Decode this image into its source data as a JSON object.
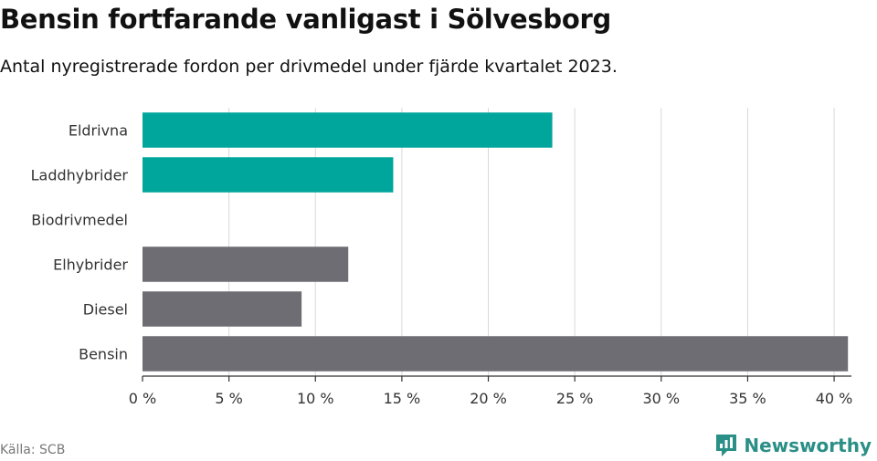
{
  "header": {
    "title": "Bensin fortfarande vanligast i Sölvesborg",
    "subtitle": "Antal nyregistrerade fordon per drivmedel under fjärde kvartalet 2023."
  },
  "footer": {
    "source": "Källa: SCB",
    "brand": "Newsworthy"
  },
  "colors": {
    "electric": "#00a59b",
    "fossil": "#6e6d73",
    "grid": "#d9d9d9",
    "axis": "#333333"
  },
  "chart_data": {
    "type": "bar",
    "orientation": "horizontal",
    "title": "Bensin fortfarande vanligast i Sölvesborg",
    "subtitle": "Antal nyregistrerade fordon per drivmedel under fjärde kvartalet 2023.",
    "xlabel": "",
    "ylabel": "",
    "categories": [
      "Eldrivna",
      "Laddhybrider",
      "Biodrivmedel",
      "Elhybrider",
      "Diesel",
      "Bensin"
    ],
    "values": [
      23.7,
      14.5,
      0,
      11.9,
      9.2,
      40.8
    ],
    "bar_groups": [
      "electric",
      "electric",
      "electric",
      "fossil",
      "fossil",
      "fossil"
    ],
    "xlim": [
      0,
      41
    ],
    "xticks": [
      0,
      5,
      10,
      15,
      20,
      25,
      30,
      35,
      40
    ],
    "xtick_labels": [
      "0 %",
      "5 %",
      "10 %",
      "15 %",
      "20 %",
      "25 %",
      "30 %",
      "35 %",
      "40 %"
    ],
    "grid": true
  }
}
